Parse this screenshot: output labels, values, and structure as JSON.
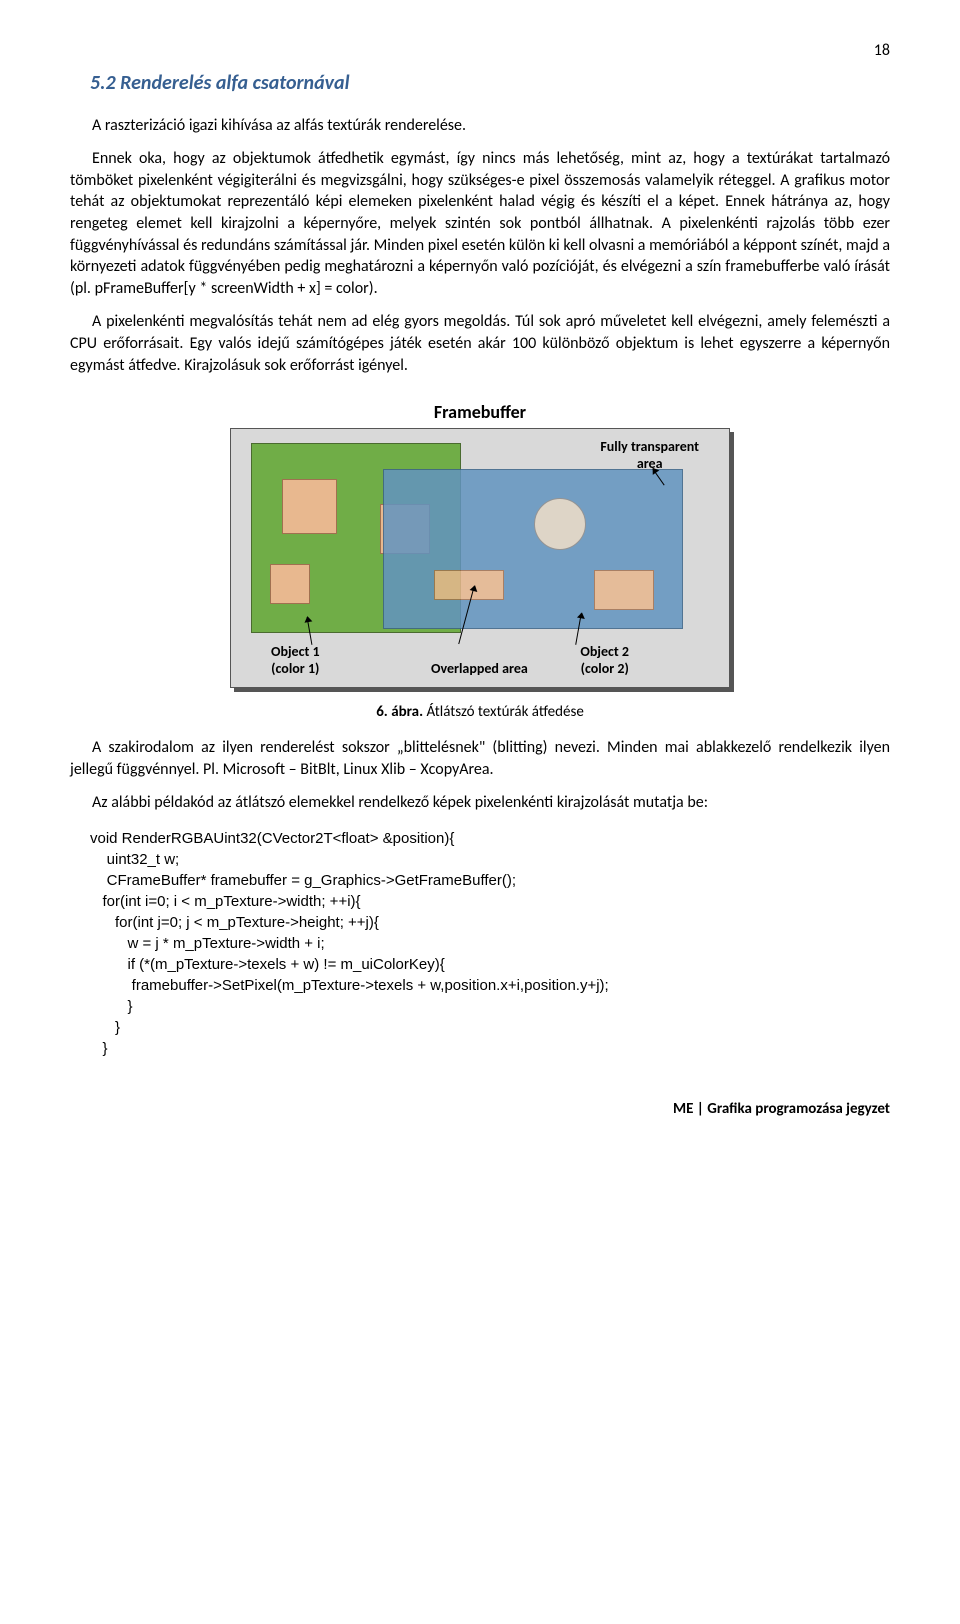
{
  "page_number": "18",
  "heading": "5.2 Renderelés alfa csatornával",
  "paragraphs": {
    "p1": "A raszterizáció igazi kihívása az alfás textúrák renderelése.",
    "p2": "Ennek oka, hogy az objektumok átfedhetik egymást, így nincs más lehetőség, mint az, hogy a textúrákat tartalmazó tömböket pixelenként végigiterálni és megvizsgálni, hogy szükséges-e pixel összemosás valamelyik réteggel. A grafikus motor tehát az objektumokat reprezentáló képi elemeken pixelenként halad végig és készíti el a képet. Ennek hátránya az, hogy rengeteg elemet kell kirajzolni a képernyőre, melyek szintén sok pontból állhatnak. A pixelenkénti rajzolás több ezer függvényhívással és redundáns számítással jár. Minden pixel esetén külön ki kell olvasni a memóriából a képpont színét, majd a környezeti adatok függvényében pedig meghatározni a képernyőn való pozícióját, és elvégezni a szín framebufferbe való írását (pl. pFrameBuffer[y * screenWidth + x] = color).",
    "p3": "A pixelenkénti megvalósítás tehát nem ad elég gyors megoldás. Túl sok apró műveletet kell elvégezni, amely felemészti a CPU erőforrásait. Egy valós idejű számítógépes játék esetén akár 100 különböző objektum is lehet egyszerre a képernyőn egymást átfedve. Kirajzolásuk sok erőforrást igényel.",
    "p4": "A szakirodalom az ilyen renderelést sokszor „blittelésnek\" (blitting) nevezi. Minden mai ablakkezelő rendelkezik ilyen jellegű függvénnyel. Pl. Microsoft – BitBlt, Linux Xlib – XcopyArea.",
    "p5": "Az alábbi példakód az átlátszó elemekkel rendelkező képek pixelenkénti kirajzolását mutatja be:"
  },
  "figure": {
    "title": "Framebuffer",
    "label_transparent": "Fully transparent\narea",
    "label_obj1": "Object 1\n(color 1)",
    "label_overlap": "Overlapped area",
    "label_obj2": "Object 2\n(color 2)",
    "caption_num": "6. ábra.",
    "caption_text": " Átlátszó textúrák átfedése",
    "colors": {
      "outer_bg": "#d9d9d9",
      "obj1_bg": "#70ad47",
      "obj2_bg": "#6294c0",
      "square_bg": "#e8b88f",
      "circle_bg": "#e0d5c5"
    }
  },
  "code": "void RenderRGBAUint32(CVector2T<float> &position){\n    uint32_t w;\n    CFrameBuffer* framebuffer = g_Graphics->GetFrameBuffer();\n   for(int i=0; i < m_pTexture->width; ++i){\n      for(int j=0; j < m_pTexture->height; ++j){\n         w = j * m_pTexture->width + i;\n         if (*(m_pTexture->texels + w) != m_uiColorKey){\n          framebuffer->SetPixel(m_pTexture->texels + w,position.x+i,position.y+j);\n         }\n      }\n   }",
  "footer": "ME | Grafika programozása jegyzet"
}
